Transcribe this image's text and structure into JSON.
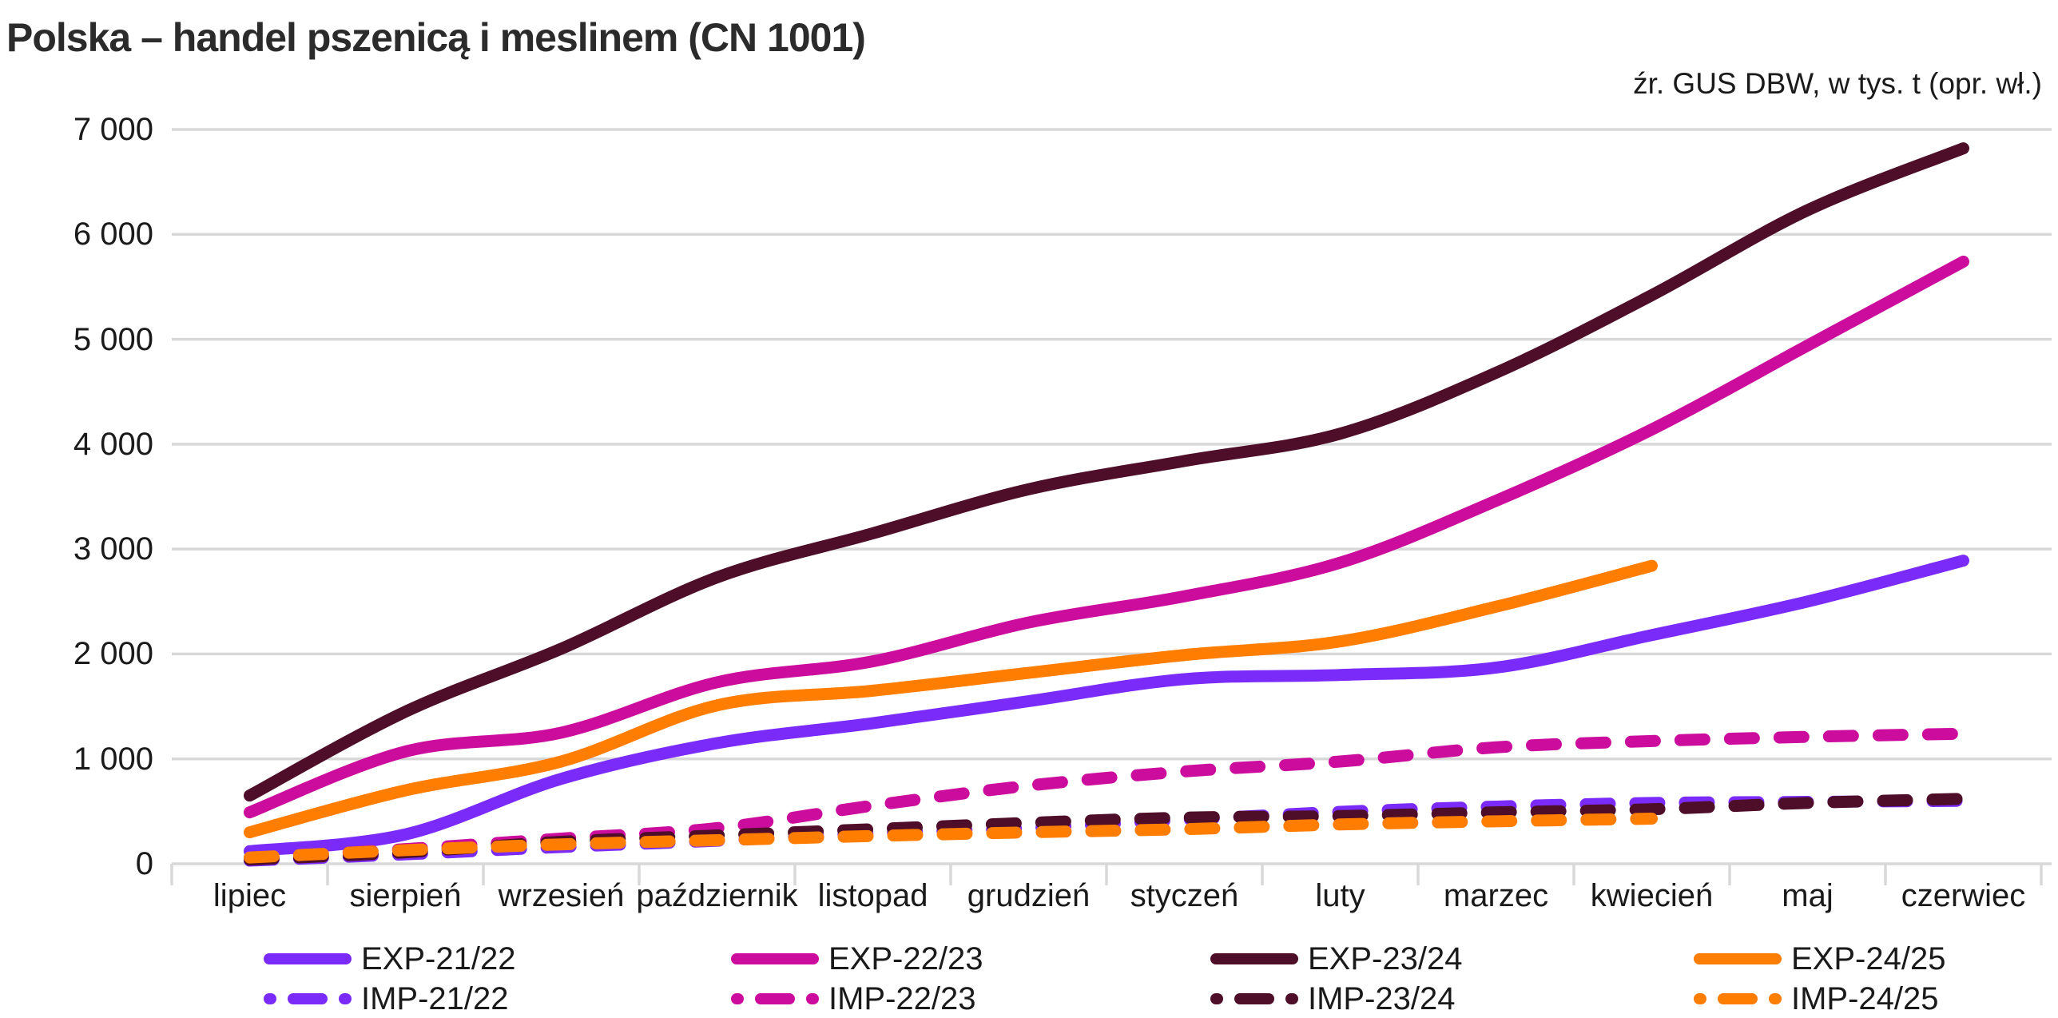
{
  "header": {
    "title": "Polska – handel pszenicą i meslinem (CN 1001)",
    "source": "źr. GUS DBW, w tys. t (opr. wł.)"
  },
  "colors": {
    "season_21_22": "#7B2BF9",
    "season_22_23": "#CB0C9C",
    "season_23_24": "#4E0D28",
    "season_24_25": "#FF7D00",
    "gridline": "#d8d8d8",
    "text": "#1a1a1a",
    "title_text": "#2b2b2b",
    "background": "#ffffff"
  },
  "chart_data": {
    "type": "line",
    "title": "Polska – handel pszenicą i meslinem (CN 1001)",
    "subtitle": "źr. GUS DBW, w tys. t (opr. wł.)",
    "xlabel": "",
    "ylabel": "",
    "ylim": [
      0,
      7000
    ],
    "yticks": [
      0,
      1000,
      2000,
      3000,
      4000,
      5000,
      6000,
      7000
    ],
    "ytick_labels": [
      "0",
      "1 000",
      "2 000",
      "3 000",
      "4 000",
      "5 000",
      "6 000",
      "7 000"
    ],
    "grid": true,
    "legend_position": "bottom",
    "categories": [
      "lipiec",
      "sierpień",
      "wrzesień",
      "październik",
      "listopad",
      "grudzień",
      "styczeń",
      "luty",
      "marzec",
      "kwiecień",
      "maj",
      "czerwiec"
    ],
    "series": [
      {
        "name": "EXP-21/22",
        "style": "solid",
        "color": "#7B2BF9",
        "season": 0,
        "values": [
          120,
          280,
          810,
          1150,
          1340,
          1550,
          1760,
          1800,
          1870,
          2180,
          2500,
          2890
        ]
      },
      {
        "name": "IMP-21/22",
        "style": "dashed",
        "color": "#7B2BF9",
        "season": 0,
        "values": [
          30,
          90,
          160,
          220,
          290,
          340,
          420,
          495,
          545,
          580,
          590,
          600
        ]
      },
      {
        "name": "EXP-22/23",
        "style": "solid",
        "color": "#CB0C9C",
        "season": 1,
        "values": [
          490,
          1070,
          1250,
          1730,
          1930,
          2300,
          2550,
          2870,
          3460,
          4140,
          4940,
          5740
        ]
      },
      {
        "name": "IMP-22/23",
        "style": "dashed",
        "color": "#CB0C9C",
        "season": 1,
        "values": [
          50,
          140,
          240,
          340,
          555,
          745,
          880,
          975,
          1110,
          1170,
          1210,
          1240
        ]
      },
      {
        "name": "EXP-23/24",
        "style": "solid",
        "color": "#4E0D28",
        "season": 2,
        "values": [
          650,
          1450,
          2050,
          2730,
          3150,
          3570,
          3840,
          4100,
          4680,
          5420,
          6230,
          6820
        ]
      },
      {
        "name": "IMP-23/24",
        "style": "dashed",
        "color": "#4E0D28",
        "season": 2,
        "values": [
          40,
          110,
          210,
          270,
          330,
          390,
          440,
          455,
          490,
          520,
          580,
          620
        ]
      },
      {
        "name": "EXP-24/25",
        "style": "solid",
        "color": "#FF7D00",
        "season": 3,
        "values": [
          300,
          700,
          975,
          1510,
          1650,
          1820,
          1990,
          2120,
          2450,
          2840,
          null,
          null
        ]
      },
      {
        "name": "IMP-24/25",
        "style": "dashed",
        "color": "#FF7D00",
        "season": 3,
        "values": [
          60,
          130,
          185,
          225,
          265,
          300,
          330,
          375,
          405,
          430,
          null,
          null
        ]
      }
    ]
  }
}
